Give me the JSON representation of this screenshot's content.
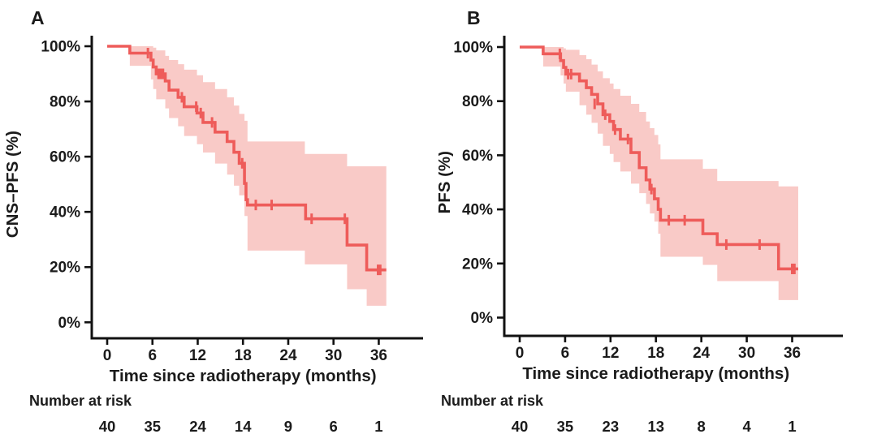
{
  "figure": {
    "background": "#ffffff",
    "curve_color": "#ee5c5a",
    "band_color": "#f9cac7",
    "axis_color": "#111111",
    "text_color": "#1b1b1b"
  },
  "chart_data": [
    {
      "type": "line",
      "curve_type": "kaplan-meier-step",
      "panel_label": "A",
      "xlabel": "Time since radiotherapy (months)",
      "ylabel": "CNS–PFS (%)",
      "xlim": [
        0,
        42
      ],
      "ylim": [
        0,
        100
      ],
      "xticks": [
        0,
        6,
        12,
        18,
        24,
        30,
        36
      ],
      "ytick_values": [
        0,
        20,
        40,
        60,
        80,
        100
      ],
      "ytick_labels": [
        "0%",
        "20%",
        "40%",
        "60%",
        "80%",
        "100%"
      ],
      "grid": false,
      "legend": false,
      "end_time": 37.0,
      "steps": [
        [
          0,
          100
        ],
        [
          3.0,
          97.5
        ],
        [
          5.8,
          95
        ],
        [
          6.1,
          92.5
        ],
        [
          6.5,
          90
        ],
        [
          7.7,
          87.4
        ],
        [
          8.2,
          84.1
        ],
        [
          9.4,
          81.5
        ],
        [
          10.2,
          78.1
        ],
        [
          11.9,
          75.8
        ],
        [
          12.7,
          72.4
        ],
        [
          14.3,
          68.9
        ],
        [
          15.9,
          65.5
        ],
        [
          16.8,
          61.6
        ],
        [
          17.5,
          57.6
        ],
        [
          18.2,
          50.3
        ],
        [
          18.4,
          44.4
        ],
        [
          18.6,
          42.5
        ],
        [
          26.3,
          37.5
        ],
        [
          31.8,
          28.0
        ],
        [
          34.4,
          19.0
        ]
      ],
      "censors": [
        [
          5.4,
          97.5
        ],
        [
          6.8,
          90
        ],
        [
          7.1,
          90
        ],
        [
          7.4,
          90
        ],
        [
          9.9,
          81.5
        ],
        [
          11.8,
          78.1
        ],
        [
          12.4,
          75.8
        ],
        [
          13.9,
          72.4
        ],
        [
          17.9,
          57.6
        ],
        [
          19.7,
          42.5
        ],
        [
          21.8,
          42.5
        ],
        [
          27.1,
          37.5
        ],
        [
          31.5,
          37.5
        ],
        [
          35.9,
          19.0
        ],
        [
          36.2,
          19.0
        ]
      ],
      "ci": [
        [
          3.0,
          92.9,
          100
        ],
        [
          5.8,
          88.0,
          100
        ],
        [
          6.1,
          84.5,
          99.5
        ],
        [
          6.5,
          80.8,
          98.5
        ],
        [
          7.7,
          77.5,
          96.5
        ],
        [
          8.2,
          74.0,
          95.0
        ],
        [
          9.4,
          71.0,
          93.5
        ],
        [
          10.2,
          67.5,
          91.5
        ],
        [
          11.9,
          64.5,
          89.5
        ],
        [
          12.7,
          61.5,
          87.0
        ],
        [
          14.3,
          57.5,
          84.5
        ],
        [
          15.9,
          53.5,
          81.5
        ],
        [
          16.8,
          49.5,
          78.5
        ],
        [
          17.5,
          46.0,
          75.5
        ],
        [
          18.2,
          38.5,
          73.0
        ],
        [
          18.6,
          26.0,
          65.5
        ],
        [
          26.2,
          21.0,
          61.0
        ],
        [
          31.8,
          12.0,
          56.5
        ],
        [
          34.4,
          6.0,
          56.5
        ]
      ],
      "risk_table": {
        "label": "Number at risk",
        "times": [
          0,
          6,
          12,
          18,
          24,
          30,
          36
        ],
        "values": [
          40,
          35,
          24,
          14,
          9,
          6,
          1
        ]
      }
    },
    {
      "type": "line",
      "curve_type": "kaplan-meier-step",
      "panel_label": "B",
      "xlabel": "Time since radiotherapy (months)",
      "ylabel": "PFS (%)",
      "xlim": [
        0,
        42
      ],
      "ylim": [
        0,
        100
      ],
      "xticks": [
        0,
        6,
        12,
        18,
        24,
        30,
        36
      ],
      "ytick_values": [
        0,
        20,
        40,
        60,
        80,
        100
      ],
      "ytick_labels": [
        "0%",
        "20%",
        "40%",
        "60%",
        "80%",
        "100%"
      ],
      "grid": false,
      "legend": false,
      "end_time": 36.8,
      "steps": [
        [
          0,
          100
        ],
        [
          3.1,
          97.5
        ],
        [
          5.4,
          95
        ],
        [
          5.8,
          92.5
        ],
        [
          6.1,
          90
        ],
        [
          7.9,
          87.5
        ],
        [
          8.8,
          85
        ],
        [
          9.5,
          82.5
        ],
        [
          10.3,
          79
        ],
        [
          11.0,
          75
        ],
        [
          11.9,
          72.5
        ],
        [
          12.4,
          69.5
        ],
        [
          13.3,
          66
        ],
        [
          14.7,
          61
        ],
        [
          15.8,
          55.4
        ],
        [
          16.7,
          50.9
        ],
        [
          17.2,
          47.5
        ],
        [
          17.8,
          43.9
        ],
        [
          18.3,
          40.0
        ],
        [
          18.6,
          36.0
        ],
        [
          24.2,
          31.0
        ],
        [
          26.1,
          27.0
        ],
        [
          34.2,
          18.0
        ]
      ],
      "censors": [
        [
          5.3,
          97.5
        ],
        [
          6.4,
          90
        ],
        [
          6.8,
          90
        ],
        [
          9.9,
          79
        ],
        [
          11.3,
          75
        ],
        [
          12.6,
          69.5
        ],
        [
          14.3,
          66
        ],
        [
          17.4,
          47.5
        ],
        [
          19.7,
          36.0
        ],
        [
          21.8,
          36.0
        ],
        [
          27.3,
          27.0
        ],
        [
          31.7,
          27.0
        ],
        [
          36.0,
          18.0
        ],
        [
          36.3,
          18.0
        ]
      ],
      "ci": [
        [
          3.1,
          92.8,
          100
        ],
        [
          5.4,
          89.5,
          100
        ],
        [
          5.8,
          86.5,
          99.5
        ],
        [
          6.1,
          83.5,
          99.0
        ],
        [
          7.9,
          78.5,
          97.0
        ],
        [
          8.8,
          75.0,
          95.5
        ],
        [
          9.5,
          72.0,
          93.5
        ],
        [
          10.3,
          68.0,
          91.0
        ],
        [
          11.0,
          63.5,
          88.5
        ],
        [
          11.9,
          60.5,
          86.5
        ],
        [
          12.4,
          57.5,
          84.5
        ],
        [
          13.3,
          54.0,
          82.0
        ],
        [
          14.7,
          49.5,
          79.0
        ],
        [
          15.8,
          46.0,
          76.0
        ],
        [
          16.7,
          42.0,
          72.5
        ],
        [
          17.2,
          38.5,
          70.0
        ],
        [
          17.8,
          35.5,
          67.5
        ],
        [
          18.3,
          31.0,
          64.0
        ],
        [
          18.6,
          22.5,
          58.5
        ],
        [
          24.2,
          19.5,
          55.0
        ],
        [
          26.1,
          13.5,
          50.5
        ],
        [
          34.2,
          6.5,
          48.5
        ]
      ],
      "risk_table": {
        "label": "Number at risk",
        "times": [
          0,
          6,
          12,
          18,
          24,
          30,
          36
        ],
        "values": [
          40,
          35,
          23,
          13,
          8,
          4,
          1
        ]
      }
    }
  ]
}
